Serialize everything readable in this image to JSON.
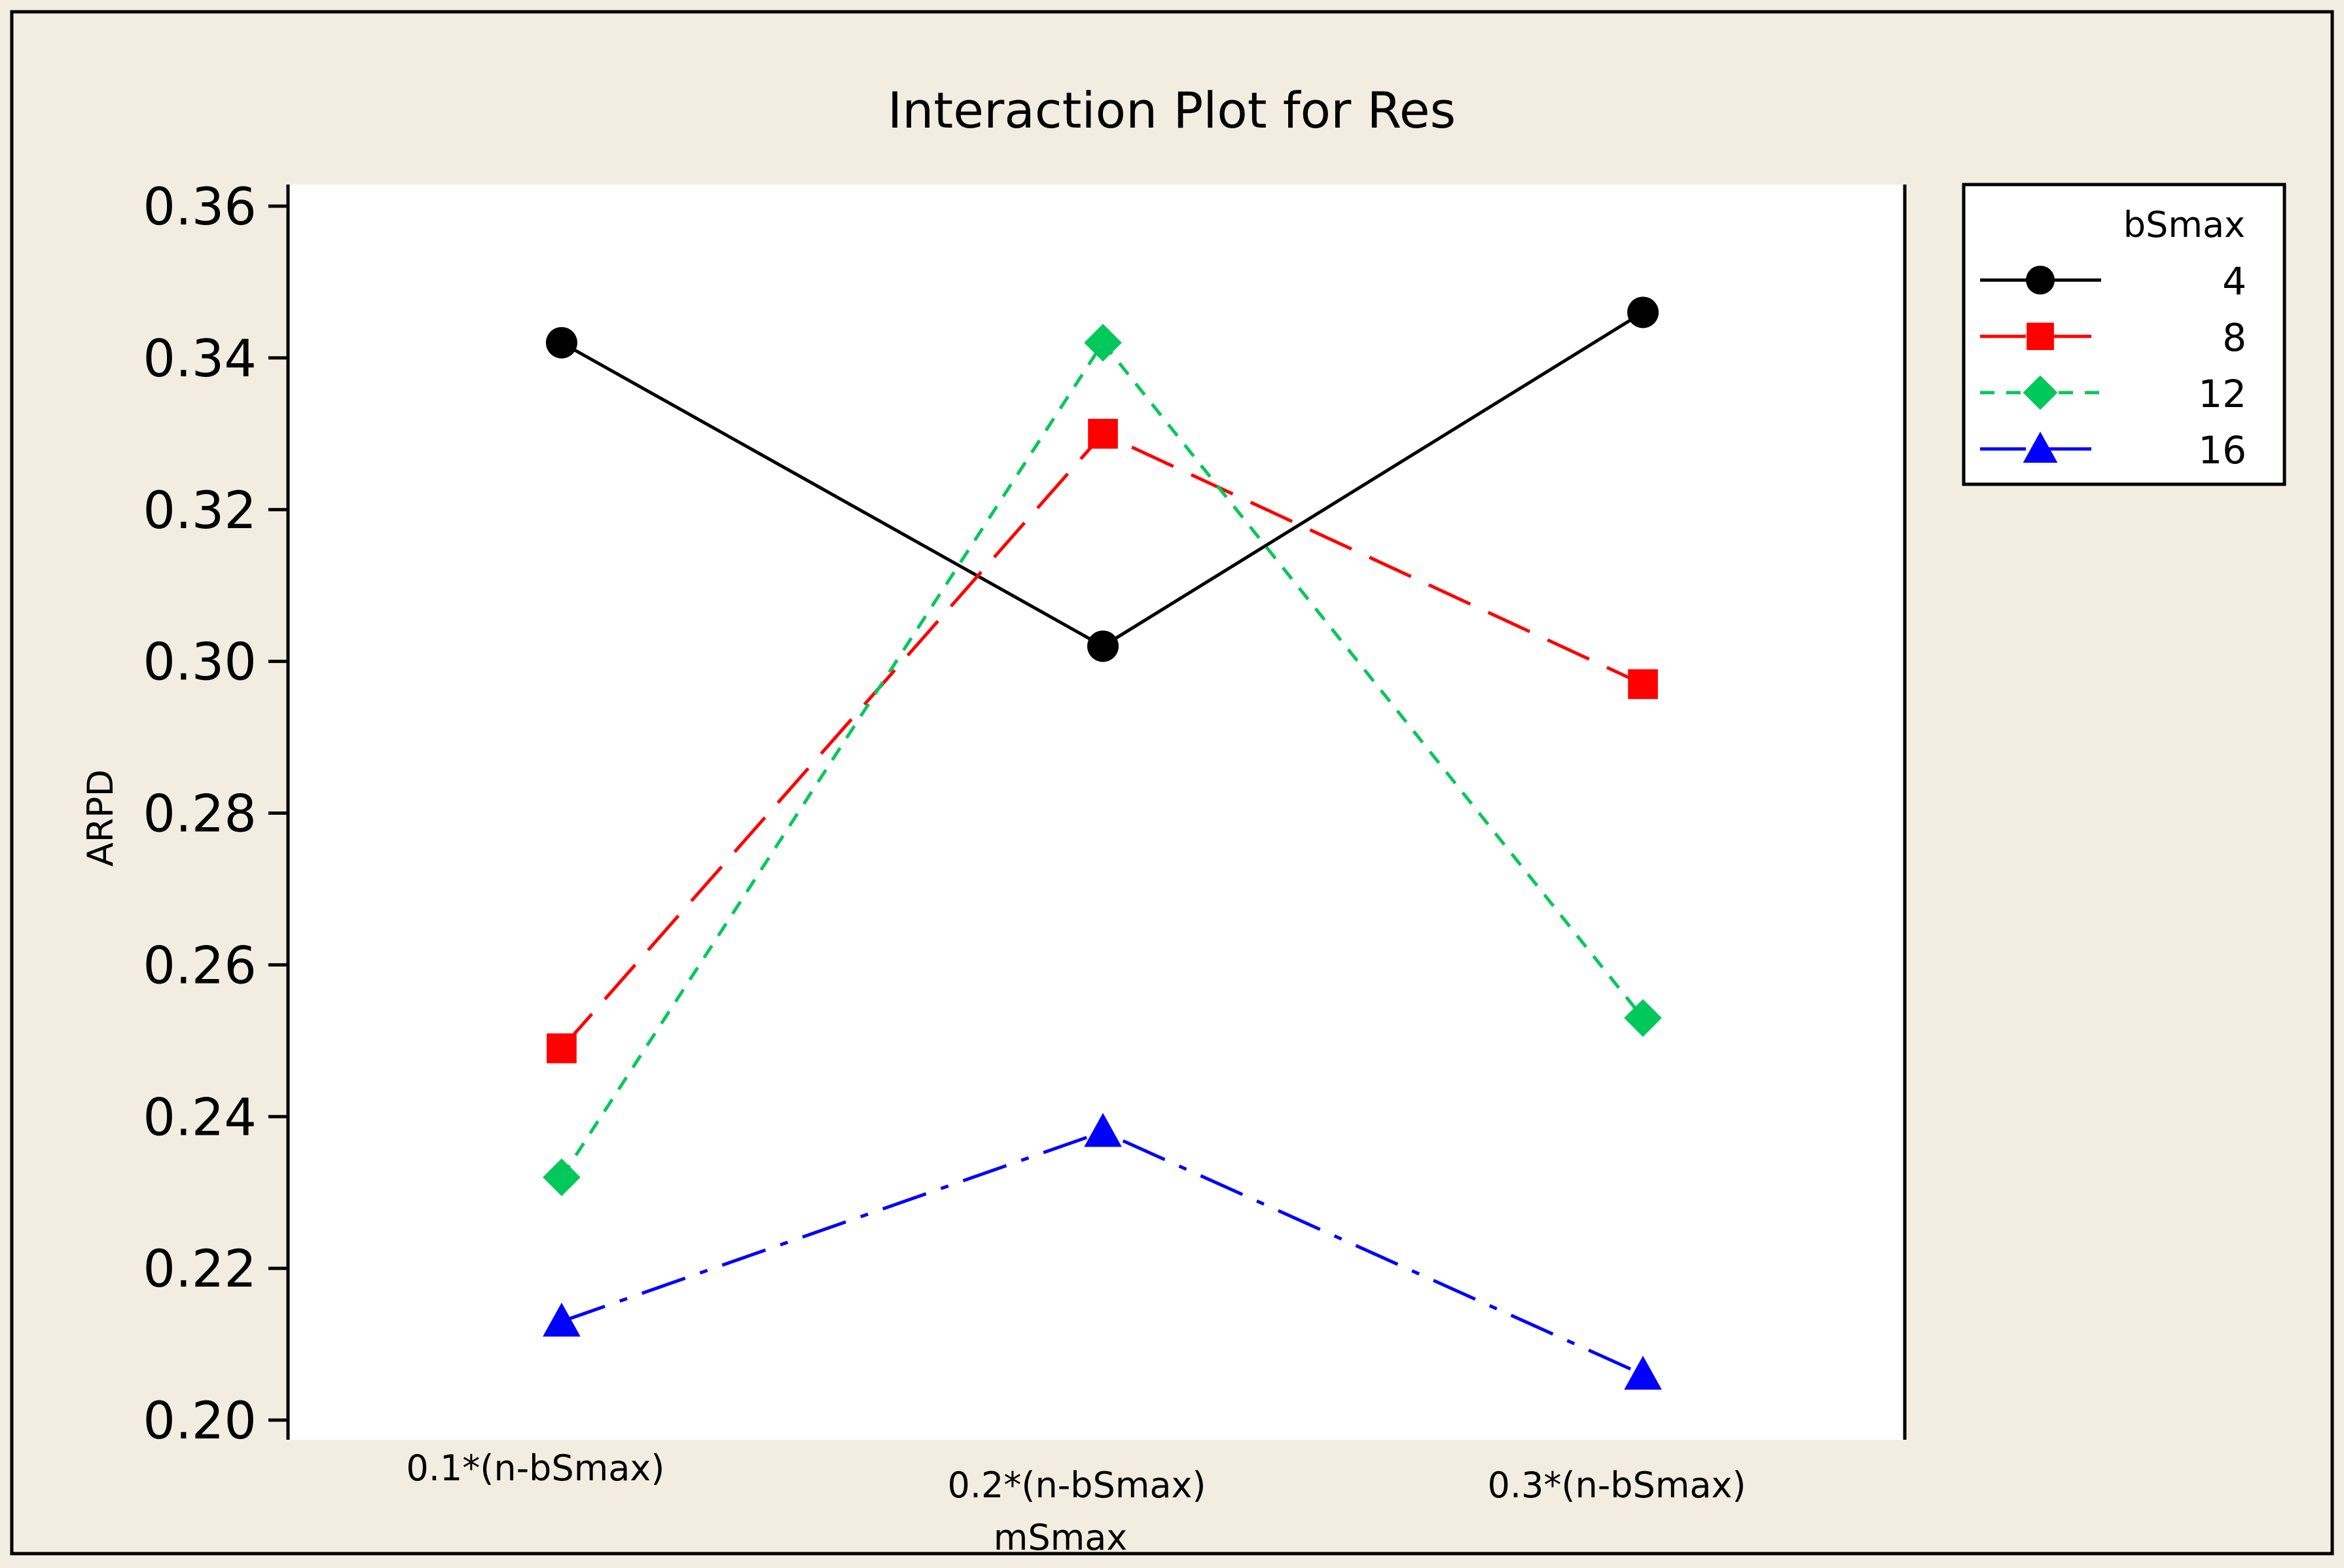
{
  "chart_data": {
    "type": "line",
    "title": "Interaction Plot for Res",
    "xlabel": "mSmax",
    "ylabel": "ARPD",
    "categories": [
      "0.1*(n-bSmax)",
      "0.2*(n-bSmax)",
      "0.3*(n-bSmax)"
    ],
    "ylim": [
      0.2,
      0.36
    ],
    "yticks": [
      "0.20",
      "0.22",
      "0.24",
      "0.26",
      "0.28",
      "0.30",
      "0.32",
      "0.34",
      "0.36"
    ],
    "grid": false,
    "legend": {
      "title": "bSmax",
      "placement": "right-top"
    },
    "series": [
      {
        "name": "4",
        "values": [
          0.342,
          0.302,
          0.346
        ],
        "color": "#000000",
        "marker": "circle",
        "dash": "solid"
      },
      {
        "name": "8",
        "values": [
          0.249,
          0.33,
          0.297
        ],
        "color": "#ff0000",
        "marker": "square",
        "dash": "long-dash"
      },
      {
        "name": "12",
        "values": [
          0.232,
          0.342,
          0.253
        ],
        "color": "#00c85a",
        "marker": "diamond",
        "dash": "short-dash"
      },
      {
        "name": "16",
        "values": [
          0.213,
          0.238,
          0.206
        ],
        "color": "#0000ff",
        "marker": "triangle",
        "dash": "dash-dot"
      }
    ]
  }
}
